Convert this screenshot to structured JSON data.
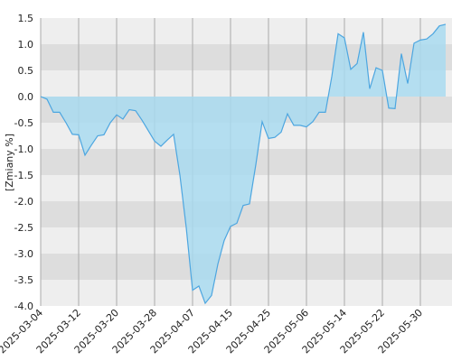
{
  "chart_data": {
    "type": "area",
    "ylabel": "[Zmiany %]",
    "x": [
      0,
      1,
      2,
      3,
      4,
      5,
      6,
      7,
      8,
      9,
      10,
      11,
      12,
      13,
      14,
      15,
      16,
      17,
      18,
      19,
      20,
      21,
      22,
      23,
      24,
      25,
      26,
      27,
      28,
      29,
      30,
      31,
      32,
      33,
      34,
      35,
      36,
      37,
      38,
      39,
      40,
      41,
      42,
      43,
      44,
      45,
      46,
      47,
      48,
      49,
      50,
      51,
      52,
      53,
      54,
      55,
      56,
      57,
      58,
      59,
      60,
      61,
      62,
      63,
      64
    ],
    "series": [
      {
        "color": "#4da6e0",
        "values": [
          0.0,
          -0.05,
          -0.3,
          -0.3,
          -0.5,
          -0.72,
          -0.73,
          -1.12,
          -0.93,
          -0.75,
          -0.73,
          -0.5,
          -0.35,
          -0.43,
          -0.25,
          -0.27,
          -0.45,
          -0.65,
          -0.85,
          -0.95,
          -0.83,
          -0.72,
          -1.5,
          -2.5,
          -3.7,
          -3.62,
          -3.95,
          -3.8,
          -3.2,
          -2.75,
          -2.48,
          -2.42,
          -2.08,
          -2.05,
          -1.3,
          -0.48,
          -0.8,
          -0.78,
          -0.68,
          -0.33,
          -0.55,
          -0.55,
          -0.58,
          -0.48,
          -0.3,
          -0.3,
          0.38,
          1.2,
          1.12,
          0.52,
          0.63,
          1.23,
          0.15,
          0.55,
          0.5,
          -0.22,
          -0.23,
          0.82,
          0.25,
          1.02,
          1.08,
          1.1,
          1.2,
          1.35,
          1.38
        ]
      }
    ],
    "xlim": [
      0,
      65
    ],
    "xticks": [
      {
        "value": 0,
        "label": "2025-03-04"
      },
      {
        "value": 6,
        "label": "2025-03-12"
      },
      {
        "value": 12,
        "label": "2025-03-20"
      },
      {
        "value": 18,
        "label": "2025-03-28"
      },
      {
        "value": 24,
        "label": "2025-04-07"
      },
      {
        "value": 30,
        "label": "2025-04-15"
      },
      {
        "value": 36,
        "label": "2025-04-25"
      },
      {
        "value": 42,
        "label": "2025-05-06"
      },
      {
        "value": 48,
        "label": "2025-05-14"
      },
      {
        "value": 54,
        "label": "2025-05-22"
      },
      {
        "value": 60,
        "label": "2025-05-30"
      }
    ],
    "ylim": [
      -4.0,
      1.5
    ],
    "yticks": [
      {
        "value": 1.5,
        "label": "1.5"
      },
      {
        "value": 1.0,
        "label": "1.0"
      },
      {
        "value": 0.5,
        "label": "0.5"
      },
      {
        "value": 0.0,
        "label": "0.0"
      },
      {
        "value": -0.5,
        "label": "-0.5"
      },
      {
        "value": -1.0,
        "label": "-1.0"
      },
      {
        "value": -1.5,
        "label": "-1.5"
      },
      {
        "value": -2.0,
        "label": "-2.0"
      },
      {
        "value": -2.5,
        "label": "-2.5"
      },
      {
        "value": -3.0,
        "label": "-3.0"
      },
      {
        "value": -3.5,
        "label": "-3.5"
      },
      {
        "value": -4.0,
        "label": "-4.0"
      }
    ],
    "grid": true
  }
}
